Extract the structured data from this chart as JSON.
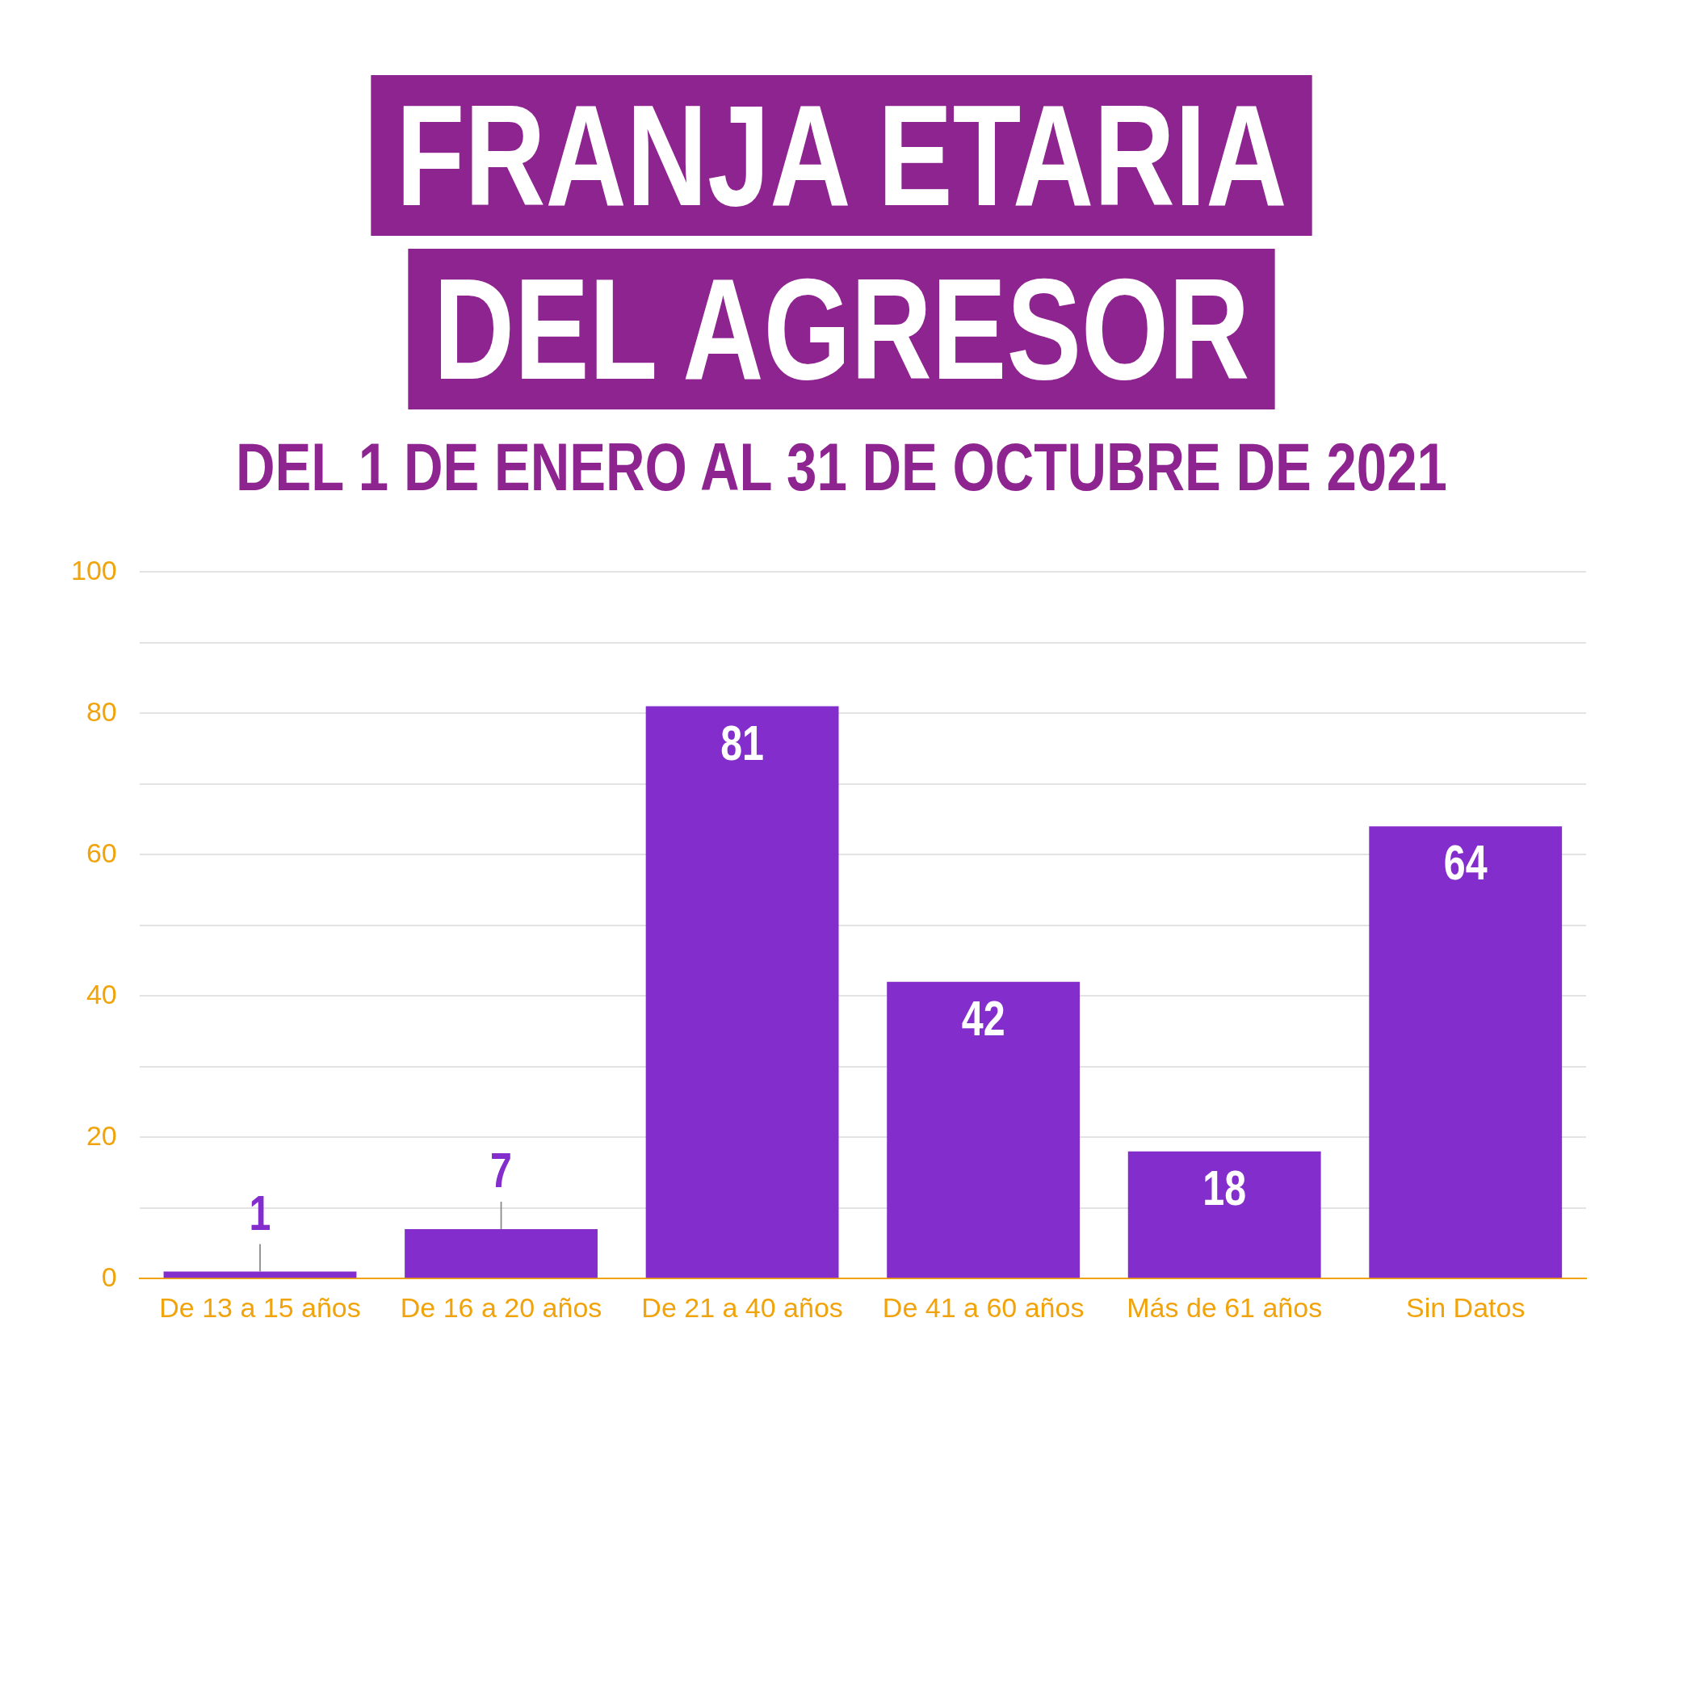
{
  "chart_data": {
    "type": "bar",
    "title": "FRANJA ETARIA DEL AGRESOR",
    "subtitle": "DEL 1 DE ENERO AL 31 DE OCTUBRE DE 2021",
    "categories": [
      "De 13 a 15 años",
      "De 16 a 20 años",
      "De 21 a 40 años",
      "De 41 a 60 años",
      "Más de 61 años",
      "Sin Datos"
    ],
    "values": [
      1,
      7,
      81,
      42,
      18,
      64
    ],
    "color": "#832dcc",
    "ylim": [
      0,
      100
    ],
    "yticks": [
      0,
      {
        "value": 10,
        "label": null
      },
      20,
      {
        "value": 30,
        "label": null
      },
      40,
      {
        "value": 50,
        "label": null
      },
      60,
      {
        "value": 70,
        "label": null
      },
      80,
      {
        "value": 90,
        "label": null
      },
      100
    ],
    "grid": "y",
    "data_labels": true
  }
}
